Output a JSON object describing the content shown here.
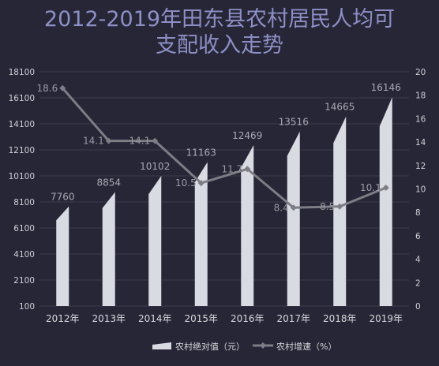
{
  "chart_data": {
    "type": "bar",
    "title_lines": [
      "2012-2019年田东县农村居民人均可",
      "支配收入走势"
    ],
    "categories": [
      "2012年",
      "2013年",
      "2014年",
      "2015年",
      "2016年",
      "2017年",
      "2018年",
      "2019年"
    ],
    "series": [
      {
        "name": "农村绝对值（元）",
        "type": "bar",
        "axis": "left",
        "values": [
          7760,
          8854,
          10102,
          11163,
          12469,
          13516,
          14665,
          16146
        ],
        "labels": [
          "7760",
          "8854",
          "10102",
          "11163",
          "12469",
          "13516",
          "14665",
          "16146"
        ],
        "color": "#d9dbe2"
      },
      {
        "name": "农村增速（%）",
        "type": "line",
        "axis": "right",
        "values": [
          18.6,
          14.1,
          14.1,
          10.5,
          11.7,
          8.4,
          8.5,
          10.1
        ],
        "labels": [
          "18.6",
          "14.1",
          "14.1",
          "10.5",
          "11.7",
          "8.4",
          "8.5",
          "10.1"
        ],
        "color": "#7d7d85"
      }
    ],
    "y_left": {
      "ylim": [
        100,
        18100
      ],
      "ticks": [
        100,
        2100,
        4100,
        6100,
        8100,
        10100,
        12100,
        14100,
        16100,
        18100
      ],
      "tick_labels": [
        "100",
        "2100",
        "4100",
        "6100",
        "8100",
        "10100",
        "12100",
        "14100",
        "16100",
        "18100"
      ]
    },
    "y_right": {
      "ylim": [
        0,
        20
      ],
      "ticks": [
        0,
        2,
        4,
        6,
        8,
        10,
        12,
        14,
        16,
        18,
        20
      ],
      "tick_labels": [
        "0",
        "2",
        "4",
        "6",
        "8",
        "10",
        "12",
        "14",
        "16",
        "18",
        "20"
      ]
    },
    "grid": true,
    "legend_position": "bottom-right",
    "colors": {
      "background": "#262636",
      "title": "#8e8fc6",
      "grid": "#3c3c4e",
      "bar": "#d9dbe2",
      "line": "#7d7d85"
    }
  }
}
